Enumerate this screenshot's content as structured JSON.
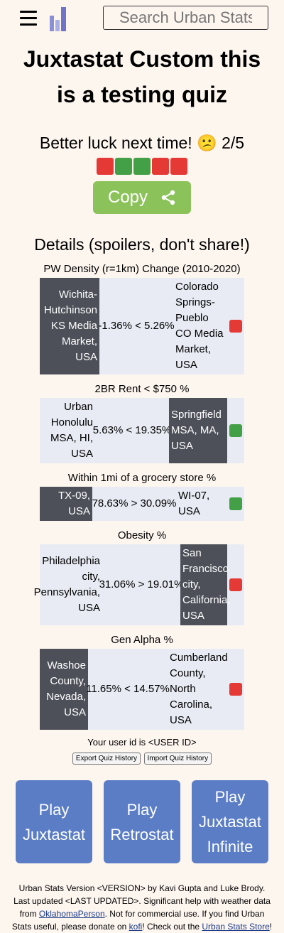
{
  "search": {
    "placeholder": "Search Urban Stats"
  },
  "title": "Juxtastat Custom this is a testing quiz",
  "result": {
    "text": "Better luck next time! 😕 2/5",
    "squares": [
      "red",
      "green",
      "green",
      "red",
      "red"
    ]
  },
  "copy_label": "Copy",
  "details_heading": "Details (spoilers, don't share!)",
  "questions": [
    {
      "label": "PW Density (r=1km) Change (2010-2020)",
      "left": "Wichita-Hutchinson KS Media Market, USA",
      "middle": "-1.36% < 5.26%",
      "right": "Colorado Springs-Pueblo CO Media Market, USA",
      "dark": "left",
      "mark": "red"
    },
    {
      "label": "2BR Rent < $750 %",
      "left": "Urban Honolulu MSA, HI, USA",
      "middle": "5.63% < 19.35%",
      "right": "Springfield MSA, MA, USA",
      "dark": "right",
      "mark": "green"
    },
    {
      "label": "Within 1mi of a grocery store %",
      "left": "TX-09, USA",
      "middle": "78.63% > 30.09%",
      "right": "WI-07, USA",
      "dark": "left",
      "mark": "green"
    },
    {
      "label": "Obesity %",
      "left": "Philadelphia city, Pennsylvania, USA",
      "middle": "31.06% > 19.01%",
      "right": "San Francisco city, California, USA",
      "dark": "right",
      "mark": "red"
    },
    {
      "label": "Gen Alpha %",
      "left": "Washoe County, Nevada, USA",
      "middle": "11.65% < 14.57%",
      "right": "Cumberland County, North Carolina, USA",
      "dark": "left",
      "mark": "red"
    }
  ],
  "user_id": "Your user id is <USER ID>",
  "history": {
    "export": "Export Quiz History",
    "import": "Import Quiz History"
  },
  "play": {
    "juxtastat": "Play Juxtastat",
    "retrostat": "Play Retrostat",
    "infinite": "Play Juxtastat Infinite"
  },
  "footer": {
    "p1": "Urban Stats Version <VERSION> by Kavi Gupta and Luke Brody. Last updated <LAST UPDATED>. Significant help with weather data from ",
    "link1": "OklahomaPerson",
    "p2": ". Not for commercial use. If you find Urban Stats useful, please donate on ",
    "link2": "kofi",
    "p3": "! Check out the ",
    "link3": "Urban Stats Store",
    "p4": "!"
  },
  "colors": {
    "background": "#fdf6ef",
    "copy_button": "#8bc25a",
    "play_button": "#5a7dc6",
    "dark_cell": "#4d5058",
    "light_cell": "#e8ebf3",
    "red": "#e53935",
    "green": "#43a047"
  }
}
